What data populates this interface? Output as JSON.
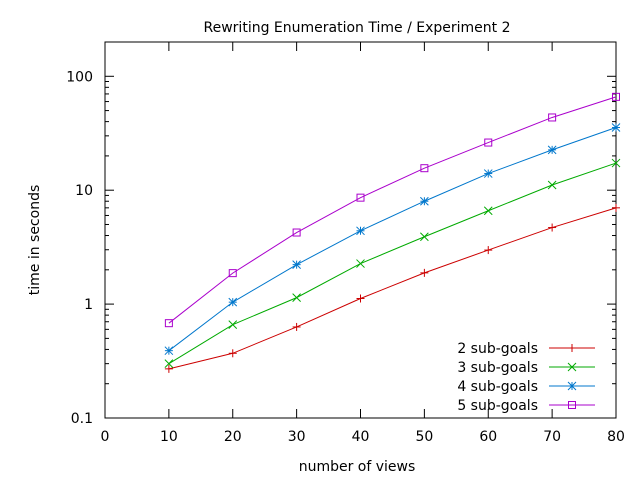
{
  "chart_data": {
    "type": "line",
    "title": "Rewriting Enumeration Time / Experiment 2",
    "xlabel": "number of views",
    "ylabel": "time in seconds",
    "x": [
      10,
      20,
      30,
      40,
      50,
      60,
      70,
      80
    ],
    "xlim": [
      0,
      80
    ],
    "ylim": [
      0.1,
      200
    ],
    "yscale": "log",
    "x_ticks": [
      "0",
      "10",
      "20",
      "30",
      "40",
      "50",
      "60",
      "70",
      "80"
    ],
    "y_ticks": [
      "0.1",
      "1",
      "10",
      "100"
    ],
    "legend_position": "bottom-right",
    "series": [
      {
        "name": "2 sub-goals",
        "color": "#cc0000",
        "marker": "plus",
        "values": [
          0.27,
          0.37,
          0.63,
          1.12,
          1.88,
          2.98,
          4.7,
          7.0
        ]
      },
      {
        "name": "3 sub-goals",
        "color": "#00aa00",
        "marker": "cross",
        "values": [
          0.3,
          0.66,
          1.14,
          2.27,
          3.9,
          6.6,
          11.1,
          17.3
        ]
      },
      {
        "name": "4 sub-goals",
        "color": "#0077cc",
        "marker": "star",
        "values": [
          0.39,
          1.04,
          2.22,
          4.4,
          8.0,
          14.0,
          22.6,
          35.5
        ]
      },
      {
        "name": "5 sub-goals",
        "color": "#aa00cc",
        "marker": "square",
        "values": [
          0.68,
          1.87,
          4.25,
          8.6,
          15.6,
          26.2,
          43.5,
          66.0
        ]
      }
    ]
  }
}
